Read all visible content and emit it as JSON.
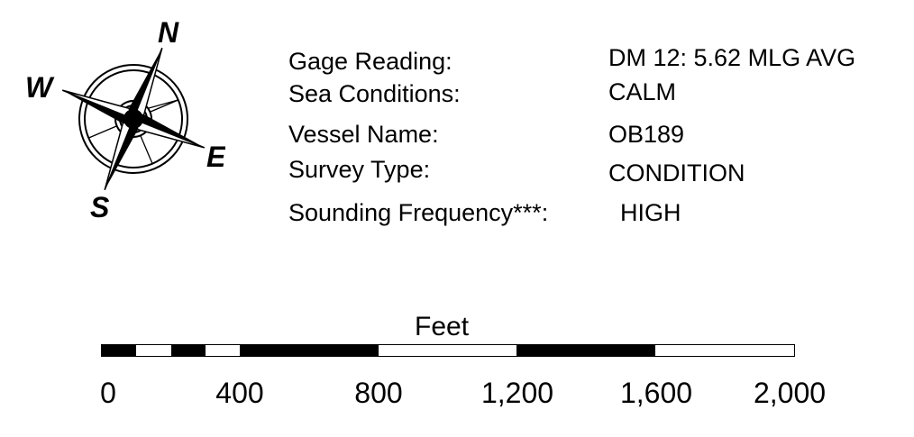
{
  "compass": {
    "north": "N",
    "south": "S",
    "east": "E",
    "west": "W",
    "icon": "compass-rose-icon"
  },
  "survey_info": [
    {
      "label": "Gage Reading:",
      "value": "DM 12: 5.62 MLG AVG"
    },
    {
      "label": "Sea Conditions:",
      "value": "CALM"
    },
    {
      "label": "Vessel Name:",
      "value": "OB189"
    },
    {
      "label": "Survey Type:",
      "value": "CONDITION"
    },
    {
      "label": "Sounding Frequency***:",
      "value": "HIGH"
    }
  ],
  "scale_bar": {
    "title": "Feet",
    "min": 0,
    "max": 2000,
    "tick_labels": [
      "0",
      "400",
      "800",
      "1,200",
      "1,600",
      "2,000"
    ],
    "tick_values": [
      0,
      400,
      800,
      1200,
      1600,
      2000
    ],
    "segments": [
      {
        "from": 0,
        "to": 100,
        "fill": "black"
      },
      {
        "from": 100,
        "to": 200,
        "fill": "white"
      },
      {
        "from": 200,
        "to": 300,
        "fill": "black"
      },
      {
        "from": 300,
        "to": 400,
        "fill": "white"
      },
      {
        "from": 400,
        "to": 800,
        "fill": "black"
      },
      {
        "from": 800,
        "to": 1200,
        "fill": "white"
      },
      {
        "from": 1200,
        "to": 1600,
        "fill": "black"
      },
      {
        "from": 1600,
        "to": 2000,
        "fill": "white"
      }
    ]
  }
}
